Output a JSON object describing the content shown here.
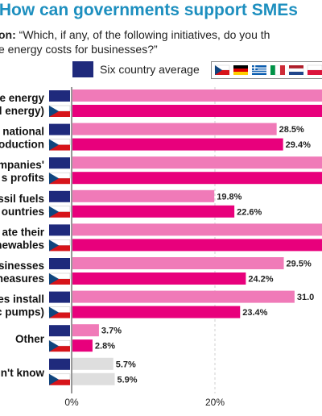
{
  "title": ": How can governments support SMEs",
  "question_label": "on:",
  "question_text": " “Which, if any, of the following initiatives, do you th\ne energy costs for businesses?”",
  "legend": {
    "average_label": "Six country average"
  },
  "colors": {
    "average": "#1f2a7c",
    "czech": "#e8007c",
    "other_average": "#f07ab8",
    "other_czech": "#cfcfcf"
  },
  "chart_data": {
    "type": "bar",
    "orientation": "horizontal",
    "xlim": [
      0,
      35
    ],
    "xticks": [
      "0%",
      "20%"
    ],
    "series": [
      {
        "name": "Six country average",
        "values": [
          null,
          28.5,
          null,
          19.8,
          null,
          29.5,
          31.0,
          3.7,
          5.7
        ]
      },
      {
        "name": "Czech Republic",
        "values": [
          null,
          29.4,
          null,
          22.6,
          null,
          24.2,
          23.4,
          2.8,
          5.9
        ]
      }
    ],
    "value_labels": [
      [
        "",
        ""
      ],
      [
        "28.5%",
        "29.4%"
      ],
      [
        "",
        ""
      ],
      [
        "19.8%",
        "22.6%"
      ],
      [
        "",
        ""
      ],
      [
        "29.5%",
        "24.2%"
      ],
      [
        "31.0",
        "23.4%"
      ],
      [
        "3.7%",
        "2.8%"
      ],
      [
        "5.7%",
        "5.9%"
      ]
    ],
    "categories": [
      [
        "e energy",
        "l energy)"
      ],
      [
        "national",
        "oduction"
      ],
      [
        "mpanies'",
        "s profits"
      ],
      [
        "ssil fuels",
        "ountries"
      ],
      [
        "ate their",
        "newables"
      ],
      [
        "sinesses",
        "neasures"
      ],
      [
        "es install",
        "c pumps)"
      ],
      [
        "Other"
      ],
      [
        "n't know"
      ]
    ]
  }
}
